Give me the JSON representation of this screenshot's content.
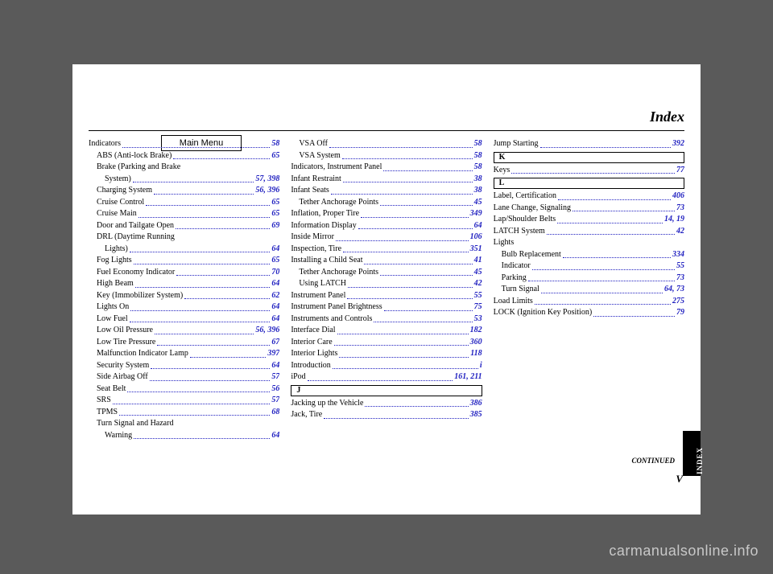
{
  "menuButton": "Main Menu",
  "title": "Index",
  "continued": "CONTINUED",
  "pageNumber": "V",
  "watermark": "carmanualsonline.info",
  "indexTab": "INDEX",
  "columns": [
    [
      {
        "label": "Indicators",
        "pages": "58",
        "indent": 0
      },
      {
        "label": "ABS (Anti-lock Brake)",
        "pages": "65",
        "indent": 1
      },
      {
        "label": "Brake (Parking and Brake",
        "pages": "",
        "indent": 1,
        "nodots": true
      },
      {
        "label": "System)",
        "pages": "57, 398",
        "indent": 2
      },
      {
        "label": "Charging System",
        "pages": "56, 396",
        "indent": 1
      },
      {
        "label": "Cruise Control",
        "pages": "65",
        "indent": 1
      },
      {
        "label": "Cruise Main",
        "pages": "65",
        "indent": 1
      },
      {
        "label": "Door and Tailgate Open",
        "pages": "69",
        "indent": 1
      },
      {
        "label": "DRL (Daytime Running",
        "pages": "",
        "indent": 1,
        "nodots": true
      },
      {
        "label": "Lights)",
        "pages": "64",
        "indent": 2
      },
      {
        "label": "Fog Lights",
        "pages": "65",
        "indent": 1
      },
      {
        "label": "Fuel Economy Indicator",
        "pages": "70",
        "indent": 1
      },
      {
        "label": "High Beam",
        "pages": "64",
        "indent": 1
      },
      {
        "label": "Key (Immobilizer System)",
        "pages": "62",
        "indent": 1
      },
      {
        "label": "Lights On",
        "pages": "64",
        "indent": 1
      },
      {
        "label": "Low Fuel",
        "pages": "64",
        "indent": 1
      },
      {
        "label": "Low Oil Pressure",
        "pages": "56, 396",
        "indent": 1
      },
      {
        "label": "Low Tire Pressure",
        "pages": "67",
        "indent": 1
      },
      {
        "label": "Malfunction Indicator Lamp",
        "pages": "397",
        "indent": 1
      },
      {
        "label": "Security System",
        "pages": "64",
        "indent": 1
      },
      {
        "label": "Side Airbag Off",
        "pages": "57",
        "indent": 1
      },
      {
        "label": "Seat Belt",
        "pages": "56",
        "indent": 1
      },
      {
        "label": "SRS",
        "pages": "57",
        "indent": 1
      },
      {
        "label": "TPMS",
        "pages": "68",
        "indent": 1
      },
      {
        "label": "Turn Signal and Hazard",
        "pages": "",
        "indent": 1,
        "nodots": true
      },
      {
        "label": "Warning",
        "pages": "64",
        "indent": 2
      }
    ],
    [
      {
        "label": "VSA Off",
        "pages": "58",
        "indent": 1
      },
      {
        "label": "VSA System",
        "pages": "58",
        "indent": 1
      },
      {
        "label": "Indicators, Instrument Panel",
        "pages": "58",
        "indent": 0
      },
      {
        "label": "Infant Restraint",
        "pages": "38",
        "indent": 0
      },
      {
        "label": "Infant Seats",
        "pages": "38",
        "indent": 0
      },
      {
        "label": "Tether Anchorage Points",
        "pages": "45",
        "indent": 1
      },
      {
        "label": "Inflation, Proper Tire",
        "pages": "349",
        "indent": 0
      },
      {
        "label": "Information Display",
        "pages": "64",
        "indent": 0
      },
      {
        "label": "Inside Mirror",
        "pages": "106",
        "indent": 0
      },
      {
        "label": "Inspection, Tire",
        "pages": "351",
        "indent": 0
      },
      {
        "label": "Installing a Child Seat",
        "pages": "41",
        "indent": 0
      },
      {
        "label": "Tether Anchorage Points",
        "pages": "45",
        "indent": 1
      },
      {
        "label": "Using LATCH",
        "pages": "42",
        "indent": 1
      },
      {
        "label": "Instrument Panel",
        "pages": "55",
        "indent": 0
      },
      {
        "label": "Instrument Panel Brightness",
        "pages": "75",
        "indent": 0
      },
      {
        "label": "Instruments and Controls",
        "pages": "53",
        "indent": 0
      },
      {
        "label": "Interface Dial",
        "pages": "182",
        "indent": 0
      },
      {
        "label": "Interior Care",
        "pages": "360",
        "indent": 0
      },
      {
        "label": "Interior Lights",
        "pages": "118",
        "indent": 0
      },
      {
        "label": "Introduction",
        "pages": "i",
        "indent": 0
      },
      {
        "label": "iPod",
        "pages": "161, 211",
        "indent": 0
      },
      {
        "letterbox": "J"
      },
      {
        "label": "Jacking up the Vehicle",
        "pages": "386",
        "indent": 0
      },
      {
        "label": "Jack, Tire",
        "pages": "385",
        "indent": 0
      }
    ],
    [
      {
        "label": "Jump Starting",
        "pages": "392",
        "indent": 0
      },
      {
        "letterbox": "K"
      },
      {
        "label": "Keys",
        "pages": "77",
        "indent": 0
      },
      {
        "letterbox": "L"
      },
      {
        "label": "Label, Certification",
        "pages": "406",
        "indent": 0
      },
      {
        "label": "Lane Change, Signaling",
        "pages": "73",
        "indent": 0
      },
      {
        "label": "Lap/Shoulder Belts",
        "pages": "14, 19",
        "indent": 0
      },
      {
        "label": "LATCH System",
        "pages": "42",
        "indent": 0
      },
      {
        "label": "Lights",
        "pages": "",
        "indent": 0,
        "nodots": true
      },
      {
        "label": "Bulb Replacement",
        "pages": "334",
        "indent": 1
      },
      {
        "label": "Indicator",
        "pages": "55",
        "indent": 1
      },
      {
        "label": "Parking",
        "pages": "73",
        "indent": 1
      },
      {
        "label": "Turn Signal",
        "pages": "64, 73",
        "indent": 1
      },
      {
        "label": "Load Limits",
        "pages": "275",
        "indent": 0
      },
      {
        "label": "LOCK (Ignition Key Position)",
        "pages": "79",
        "indent": 0
      }
    ]
  ]
}
